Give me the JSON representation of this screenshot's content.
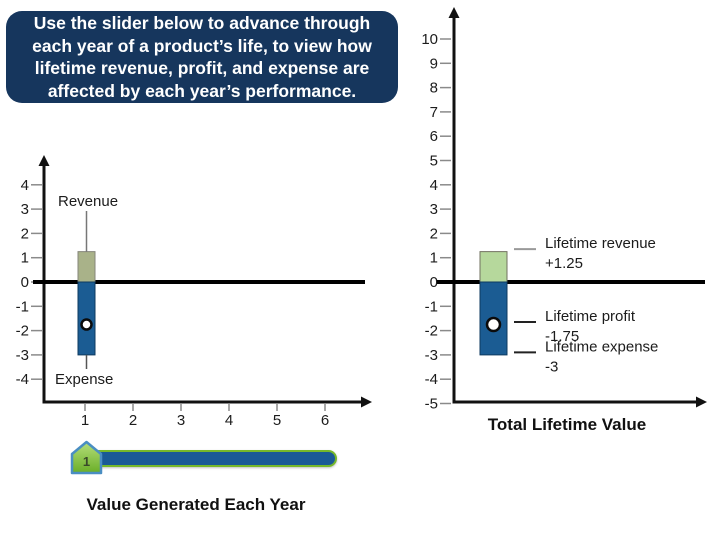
{
  "instruction": {
    "text": "Use the slider below to advance through each year of a product’s life, to view how lifetime revenue, profit, and expense are affected by each year’s performance."
  },
  "colors": {
    "instruction_bg": "#16365d",
    "revenue_green_left": "#a9b289",
    "revenue_green_right": "#b6d89c",
    "expense_blue": "#1b5c93",
    "axis_black": "#111111",
    "slider_track_blue": "#1a5a96",
    "slider_green": "#76b82a"
  },
  "chart_data": [
    {
      "type": "bar",
      "name": "value-generated-each-year",
      "title": "Value Generated Each Year",
      "x_ticks": [
        "1",
        "2",
        "3",
        "4",
        "5",
        "6"
      ],
      "y_ticks": [
        4,
        3,
        2,
        1,
        0,
        -1,
        -2,
        -3,
        -4
      ],
      "ylim": [
        -4,
        4
      ],
      "grid": false,
      "bar_x": "1",
      "revenue": 1.25,
      "expense": -3,
      "profit_marker": -1.75,
      "annotations": {
        "revenue_label": "Revenue",
        "expense_label": "Expense"
      }
    },
    {
      "type": "bar",
      "name": "total-lifetime-value",
      "title": "Total Lifetime Value",
      "y_ticks": [
        10,
        9,
        8,
        7,
        6,
        5,
        4,
        3,
        2,
        1,
        0,
        -1,
        -2,
        -3,
        -4,
        -5
      ],
      "ylim": [
        -5,
        10
      ],
      "grid": false,
      "revenue": 1.25,
      "expense": -3,
      "profit_marker": -1.75,
      "callouts": [
        {
          "label": "Lifetime revenue",
          "value": "+1.25",
          "v": 1.25
        },
        {
          "label": "Lifetime profit",
          "value": "-1.75",
          "v": -1.75
        },
        {
          "label": "Lifetime expense",
          "value": "-3",
          "v": -3
        }
      ]
    }
  ],
  "slider": {
    "value": "1",
    "min": 1,
    "max": 6
  }
}
